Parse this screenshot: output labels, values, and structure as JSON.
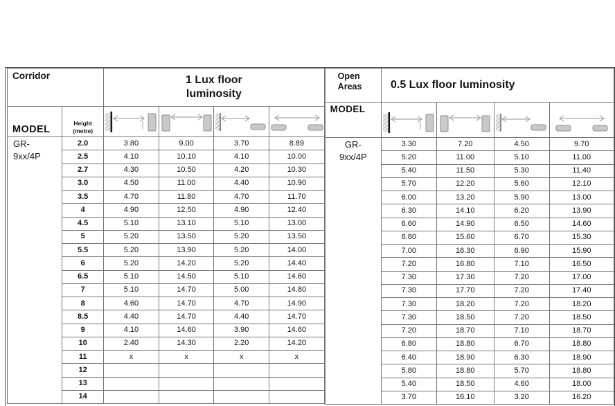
{
  "document": {
    "heights_metre": [
      "2.0",
      "2.5",
      "2.7",
      "3.0",
      "3.5",
      "4",
      "4.5",
      "5",
      "5.5",
      "6",
      "6.5",
      "7",
      "8",
      "8.5",
      "9",
      "10",
      "11",
      "12",
      "13",
      "14"
    ],
    "corridor_section": {
      "label": "Corridor",
      "title": "1 Lux floor luminosity",
      "model_header": "MODEL",
      "height_header": "Height (metre)",
      "model": [
        "GR-",
        "9xx/4P"
      ],
      "icon_columns": [
        "wall-sensor-to-opposite-wall",
        "wall-sensor-to-wall-sensor",
        "wall-sensor-to-floor-unit",
        "floor-unit-to-floor-unit"
      ],
      "values": [
        [
          "3.80",
          "9.00",
          "3.70",
          "8.89"
        ],
        [
          "4.10",
          "10.10",
          "4.10",
          "10.00"
        ],
        [
          "4.30",
          "10.50",
          "4.20",
          "10.30"
        ],
        [
          "4.50",
          "11.00",
          "4.40",
          "10.90"
        ],
        [
          "4.70",
          "11.80",
          "4.70",
          "11.70"
        ],
        [
          "4.90",
          "12.50",
          "4.90",
          "12.40"
        ],
        [
          "5.10",
          "13.10",
          "5.10",
          "13.00"
        ],
        [
          "5.20",
          "13.50",
          "5.20",
          "13.50"
        ],
        [
          "5.20",
          "13.90",
          "5.20",
          "14.00"
        ],
        [
          "5.20",
          "14.20",
          "5.20",
          "14.40"
        ],
        [
          "5.10",
          "14.50",
          "5.10",
          "14.60"
        ],
        [
          "5.10",
          "14.70",
          "5.00",
          "14.80"
        ],
        [
          "4.60",
          "14.70",
          "4.70",
          "14.90"
        ],
        [
          "4.40",
          "14.70",
          "4.40",
          "14.70"
        ],
        [
          "4.10",
          "14.60",
          "3.90",
          "14.60"
        ],
        [
          "2.40",
          "14.30",
          "2.20",
          "14.20"
        ],
        [
          "x",
          "x",
          "x",
          "x"
        ],
        [
          "",
          "",
          "",
          ""
        ],
        [
          "",
          "",
          "",
          ""
        ],
        [
          "",
          "",
          "",
          ""
        ]
      ]
    },
    "open_areas_section": {
      "label": "Open Areas",
      "title": "0.5 Lux floor luminosity",
      "model_header": "MODEL",
      "model": [
        "GR-",
        "9xx/4P"
      ],
      "icon_columns": [
        "wall-sensor-to-opposite-wall",
        "wall-sensor-to-wall-sensor",
        "wall-sensor-to-floor-unit",
        "floor-unit-to-floor-unit"
      ],
      "values": [
        [
          "3.30",
          "7.20",
          "4.50",
          "9.70"
        ],
        [
          "5.20",
          "11.00",
          "5.10",
          "11.00"
        ],
        [
          "5.40",
          "11.50",
          "5.30",
          "11.40"
        ],
        [
          "5.70",
          "12.20",
          "5.60",
          "12.10"
        ],
        [
          "6.00",
          "13.20",
          "5.90",
          "13.00"
        ],
        [
          "6.30",
          "14.10",
          "6.20",
          "13.90"
        ],
        [
          "6.60",
          "14.90",
          "6.50",
          "14.60"
        ],
        [
          "6.80",
          "15.60",
          "6.70",
          "15.30"
        ],
        [
          "7.00",
          "16.30",
          "6.90",
          "15.90"
        ],
        [
          "7.20",
          "16.80",
          "7.10",
          "16.50"
        ],
        [
          "7.30",
          "17.30",
          "7.20",
          "17.00"
        ],
        [
          "7.30",
          "17.70",
          "7.20",
          "17.40"
        ],
        [
          "7.30",
          "18.20",
          "7.20",
          "18.20"
        ],
        [
          "7.30",
          "18.50",
          "7.20",
          "18.50"
        ],
        [
          "7.20",
          "18.70",
          "7.10",
          "18.70"
        ],
        [
          "6.80",
          "18.80",
          "6.70",
          "18.80"
        ],
        [
          "6.40",
          "18.90",
          "6.30",
          "18.90"
        ],
        [
          "5.80",
          "18.80",
          "5.70",
          "18.80"
        ],
        [
          "5.40",
          "18.50",
          "4.60",
          "18.00"
        ],
        [
          "3.70",
          "16.10",
          "3.20",
          "16.20"
        ]
      ]
    },
    "colors": {
      "background": "#ffffff",
      "grid_border": "#757575",
      "outer_frame": "#4a4a4a",
      "text": "#141414",
      "sensor_fill": "#c9c9c9",
      "arrow": "#a8a8a8"
    }
  }
}
